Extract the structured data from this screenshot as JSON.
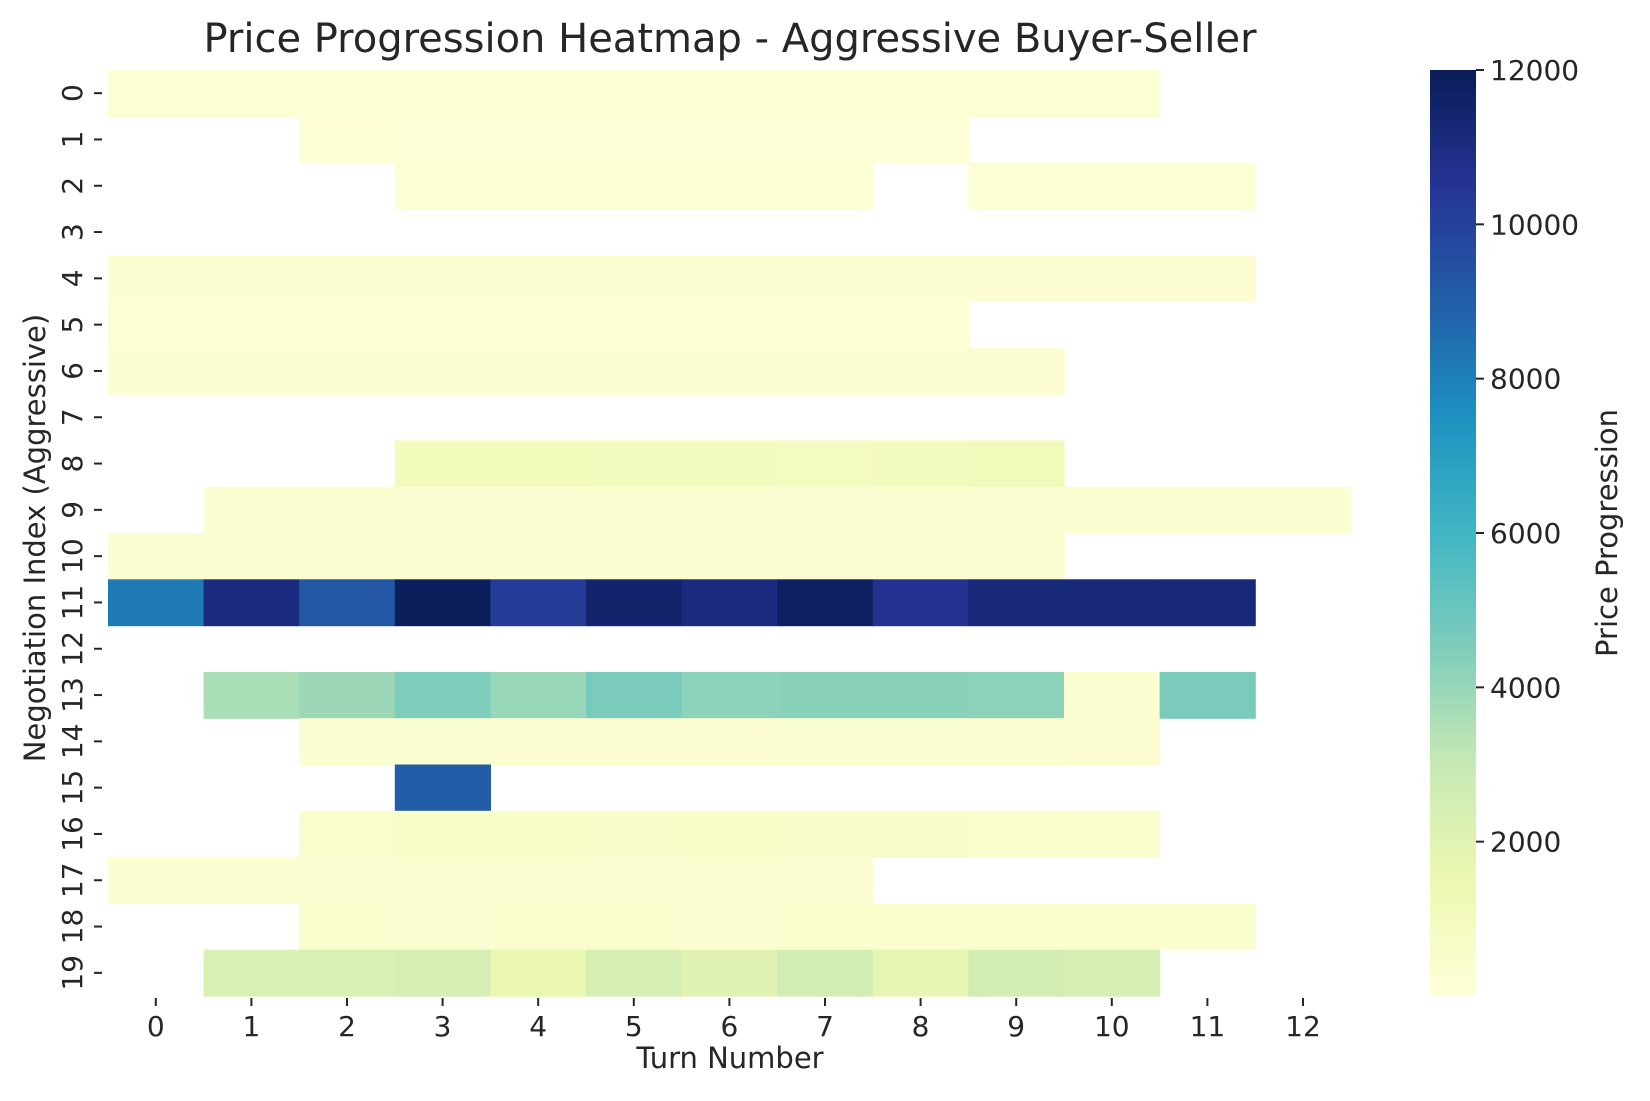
{
  "chart_data": {
    "type": "heatmap",
    "title": "Price Progression Heatmap - Aggressive Buyer-Seller",
    "xlabel": "Turn Number",
    "ylabel": "Negotiation Index (Aggressive)",
    "colorbar_label": "Price Progression",
    "colormap": "YlGnBu",
    "vmin": 0,
    "vmax": 12000,
    "x_categories": [
      "0",
      "1",
      "2",
      "3",
      "4",
      "5",
      "6",
      "7",
      "8",
      "9",
      "10",
      "11",
      "12"
    ],
    "y_categories": [
      "0",
      "1",
      "2",
      "3",
      "4",
      "5",
      "6",
      "7",
      "8",
      "9",
      "10",
      "11",
      "12",
      "13",
      "14",
      "15",
      "16",
      "17",
      "18",
      "19"
    ],
    "colorbar_ticks": [
      "2000",
      "4000",
      "6000",
      "8000",
      "10000",
      "12000"
    ],
    "colorbar_tick_values": [
      2000,
      4000,
      6000,
      8000,
      10000,
      12000
    ],
    "values": [
      [
        220,
        220,
        210,
        200,
        200,
        200,
        200,
        200,
        200,
        210,
        220,
        null,
        null
      ],
      [
        null,
        null,
        180,
        150,
        150,
        150,
        150,
        150,
        160,
        null,
        null,
        null,
        null
      ],
      [
        null,
        null,
        null,
        210,
        210,
        210,
        210,
        210,
        null,
        220,
        230,
        240,
        null
      ],
      [
        null,
        null,
        null,
        null,
        null,
        null,
        null,
        null,
        null,
        null,
        null,
        null,
        null
      ],
      [
        250,
        250,
        250,
        250,
        250,
        250,
        250,
        250,
        250,
        250,
        250,
        250,
        null
      ],
      [
        200,
        200,
        200,
        200,
        200,
        200,
        200,
        200,
        200,
        null,
        null,
        null,
        null
      ],
      [
        260,
        260,
        260,
        260,
        260,
        260,
        260,
        260,
        260,
        260,
        null,
        null,
        null
      ],
      [
        null,
        null,
        null,
        null,
        null,
        null,
        null,
        null,
        null,
        null,
        null,
        null,
        null
      ],
      [
        null,
        null,
        null,
        1100,
        1100,
        1050,
        1000,
        950,
        1050,
        1150,
        null,
        null,
        null
      ],
      [
        null,
        300,
        300,
        280,
        250,
        300,
        300,
        300,
        300,
        300,
        300,
        300,
        300
      ],
      [
        380,
        380,
        380,
        380,
        380,
        380,
        380,
        380,
        380,
        380,
        null,
        null,
        null
      ],
      [
        8200,
        11000,
        9300,
        11900,
        10200,
        11500,
        11000,
        11800,
        10600,
        11200,
        11200,
        11200,
        null
      ],
      [
        null,
        null,
        null,
        null,
        null,
        null,
        null,
        null,
        null,
        null,
        null,
        null,
        null
      ],
      [
        null,
        3600,
        3900,
        4500,
        4000,
        4600,
        4200,
        4300,
        4300,
        4200,
        300,
        4600,
        null
      ],
      [
        null,
        null,
        320,
        300,
        280,
        260,
        280,
        300,
        310,
        320,
        330,
        null,
        null
      ],
      [
        null,
        null,
        null,
        9000,
        null,
        null,
        null,
        null,
        null,
        null,
        null,
        null,
        null
      ],
      [
        null,
        null,
        500,
        650,
        600,
        550,
        600,
        580,
        550,
        450,
        420,
        null,
        null
      ],
      [
        280,
        280,
        260,
        260,
        260,
        260,
        260,
        260,
        null,
        null,
        null,
        null,
        null
      ],
      [
        null,
        null,
        400,
        380,
        360,
        370,
        380,
        400,
        400,
        420,
        400,
        400,
        null
      ],
      [
        null,
        2300,
        2300,
        2500,
        1600,
        2400,
        2000,
        2600,
        1800,
        2600,
        2400,
        null,
        null
      ]
    ]
  }
}
